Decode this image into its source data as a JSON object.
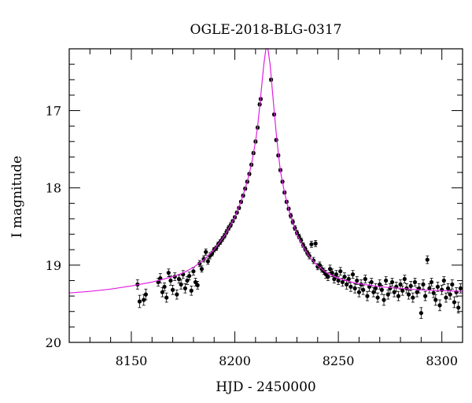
{
  "chart_data": {
    "type": "scatter",
    "title": "OGLE-2018-BLG-0317",
    "xlabel": "HJD - 2450000",
    "ylabel": "I magnitude",
    "xlim": [
      8120,
      8310
    ],
    "ylim": [
      20.0,
      16.2
    ],
    "y_inverted": true,
    "x_ticks": [
      8150,
      8200,
      8250,
      8300
    ],
    "y_ticks": [
      17,
      18,
      19,
      20
    ],
    "colors": {
      "data": "#000000",
      "model": "#e020e0"
    },
    "model": {
      "name": "",
      "x": [
        8120,
        8130,
        8140,
        8150,
        8160,
        8170,
        8175,
        8180,
        8185,
        8190,
        8195,
        8200,
        8203,
        8206,
        8208,
        8210,
        8211,
        8212,
        8213,
        8214,
        8215,
        8216,
        8217,
        8218,
        8219,
        8220,
        8221,
        8222,
        8224,
        8226,
        8228,
        8230,
        8233,
        8236,
        8240,
        8245,
        8250,
        8255,
        8260,
        8270,
        8280,
        8290,
        8300,
        8310
      ],
      "y": [
        19.36,
        19.34,
        19.31,
        19.27,
        19.22,
        19.15,
        19.1,
        19.03,
        18.93,
        18.8,
        18.62,
        18.38,
        18.18,
        17.92,
        17.7,
        17.4,
        17.2,
        16.95,
        16.68,
        16.4,
        16.15,
        16.15,
        16.4,
        16.7,
        17.0,
        17.3,
        17.55,
        17.78,
        18.06,
        18.28,
        18.45,
        18.6,
        18.76,
        18.89,
        19.01,
        19.11,
        19.17,
        19.21,
        19.24,
        19.28,
        19.3,
        19.32,
        19.33,
        19.34
      ]
    },
    "points": [
      {
        "x": 8153,
        "y": 19.25,
        "e": 0.06
      },
      {
        "x": 8154,
        "y": 19.47,
        "e": 0.08
      },
      {
        "x": 8156,
        "y": 19.45,
        "e": 0.07
      },
      {
        "x": 8157,
        "y": 19.38,
        "e": 0.07
      },
      {
        "x": 8163,
        "y": 19.22,
        "e": 0.05
      },
      {
        "x": 8164,
        "y": 19.17,
        "e": 0.06
      },
      {
        "x": 8165,
        "y": 19.35,
        "e": 0.06
      },
      {
        "x": 8166,
        "y": 19.28,
        "e": 0.05
      },
      {
        "x": 8167,
        "y": 19.42,
        "e": 0.06
      },
      {
        "x": 8168,
        "y": 19.1,
        "e": 0.05
      },
      {
        "x": 8169,
        "y": 19.2,
        "e": 0.06
      },
      {
        "x": 8170,
        "y": 19.32,
        "e": 0.06
      },
      {
        "x": 8171,
        "y": 19.15,
        "e": 0.05
      },
      {
        "x": 8172,
        "y": 19.38,
        "e": 0.06
      },
      {
        "x": 8173,
        "y": 19.18,
        "e": 0.05
      },
      {
        "x": 8174,
        "y": 19.25,
        "e": 0.06
      },
      {
        "x": 8175,
        "y": 19.12,
        "e": 0.05
      },
      {
        "x": 8176,
        "y": 19.3,
        "e": 0.06
      },
      {
        "x": 8177,
        "y": 19.2,
        "e": 0.05
      },
      {
        "x": 8178,
        "y": 19.14,
        "e": 0.05
      },
      {
        "x": 8179,
        "y": 19.33,
        "e": 0.06
      },
      {
        "x": 8180,
        "y": 19.08,
        "e": 0.05
      },
      {
        "x": 8181,
        "y": 19.22,
        "e": 0.05
      },
      {
        "x": 8182,
        "y": 19.26,
        "e": 0.05
      },
      {
        "x": 8183,
        "y": 18.98,
        "e": 0.04
      },
      {
        "x": 8184,
        "y": 19.05,
        "e": 0.04
      },
      {
        "x": 8185,
        "y": 18.92,
        "e": 0.04
      },
      {
        "x": 8186,
        "y": 18.83,
        "e": 0.04
      },
      {
        "x": 8187,
        "y": 18.95,
        "e": 0.04
      },
      {
        "x": 8188,
        "y": 18.88,
        "e": 0.04
      },
      {
        "x": 8189,
        "y": 18.85,
        "e": 0.03
      },
      {
        "x": 8190,
        "y": 18.8,
        "e": 0.03
      },
      {
        "x": 8191,
        "y": 18.78,
        "e": 0.03
      },
      {
        "x": 8192,
        "y": 18.73,
        "e": 0.03
      },
      {
        "x": 8193,
        "y": 18.7,
        "e": 0.03
      },
      {
        "x": 8194,
        "y": 18.66,
        "e": 0.03
      },
      {
        "x": 8195,
        "y": 18.62,
        "e": 0.03
      },
      {
        "x": 8196,
        "y": 18.57,
        "e": 0.03
      },
      {
        "x": 8197,
        "y": 18.52,
        "e": 0.03
      },
      {
        "x": 8198,
        "y": 18.48,
        "e": 0.03
      },
      {
        "x": 8199,
        "y": 18.43,
        "e": 0.02
      },
      {
        "x": 8200,
        "y": 18.38,
        "e": 0.02
      },
      {
        "x": 8201,
        "y": 18.32,
        "e": 0.02
      },
      {
        "x": 8202,
        "y": 18.26,
        "e": 0.02
      },
      {
        "x": 8203,
        "y": 18.18,
        "e": 0.02
      },
      {
        "x": 8204,
        "y": 18.1,
        "e": 0.02
      },
      {
        "x": 8205,
        "y": 18.01,
        "e": 0.02
      },
      {
        "x": 8206,
        "y": 17.92,
        "e": 0.02
      },
      {
        "x": 8207,
        "y": 17.82,
        "e": 0.02
      },
      {
        "x": 8208,
        "y": 17.7,
        "e": 0.02
      },
      {
        "x": 8209,
        "y": 17.55,
        "e": 0.02
      },
      {
        "x": 8210,
        "y": 17.4,
        "e": 0.02
      },
      {
        "x": 8211,
        "y": 17.22,
        "e": 0.02
      },
      {
        "x": 8212,
        "y": 16.92,
        "e": 0.02
      },
      {
        "x": 8212.5,
        "y": 16.85,
        "e": 0.02
      },
      {
        "x": 8217.5,
        "y": 16.6,
        "e": 0.02
      },
      {
        "x": 8219,
        "y": 17.05,
        "e": 0.02
      },
      {
        "x": 8220,
        "y": 17.38,
        "e": 0.02
      },
      {
        "x": 8221,
        "y": 17.58,
        "e": 0.02
      },
      {
        "x": 8222,
        "y": 17.77,
        "e": 0.02
      },
      {
        "x": 8223,
        "y": 17.92,
        "e": 0.02
      },
      {
        "x": 8224,
        "y": 18.06,
        "e": 0.02
      },
      {
        "x": 8225,
        "y": 18.18,
        "e": 0.02
      },
      {
        "x": 8226,
        "y": 18.27,
        "e": 0.02
      },
      {
        "x": 8227,
        "y": 18.36,
        "e": 0.03
      },
      {
        "x": 8228,
        "y": 18.44,
        "e": 0.03
      },
      {
        "x": 8229,
        "y": 18.52,
        "e": 0.03
      },
      {
        "x": 8230,
        "y": 18.58,
        "e": 0.03
      },
      {
        "x": 8231,
        "y": 18.63,
        "e": 0.03
      },
      {
        "x": 8232,
        "y": 18.68,
        "e": 0.03
      },
      {
        "x": 8233,
        "y": 18.74,
        "e": 0.03
      },
      {
        "x": 8234,
        "y": 18.79,
        "e": 0.03
      },
      {
        "x": 8235,
        "y": 18.84,
        "e": 0.03
      },
      {
        "x": 8236,
        "y": 18.88,
        "e": 0.04
      },
      {
        "x": 8237,
        "y": 18.73,
        "e": 0.04
      },
      {
        "x": 8238,
        "y": 18.94,
        "e": 0.04
      },
      {
        "x": 8239,
        "y": 18.72,
        "e": 0.04
      },
      {
        "x": 8240,
        "y": 19.02,
        "e": 0.04
      },
      {
        "x": 8241,
        "y": 19.0,
        "e": 0.04
      },
      {
        "x": 8242,
        "y": 19.05,
        "e": 0.04
      },
      {
        "x": 8243,
        "y": 19.08,
        "e": 0.04
      },
      {
        "x": 8244,
        "y": 19.12,
        "e": 0.05
      },
      {
        "x": 8245,
        "y": 19.15,
        "e": 0.05
      },
      {
        "x": 8246,
        "y": 19.05,
        "e": 0.05
      },
      {
        "x": 8247,
        "y": 19.1,
        "e": 0.05
      },
      {
        "x": 8248,
        "y": 19.18,
        "e": 0.05
      },
      {
        "x": 8249,
        "y": 19.12,
        "e": 0.05
      },
      {
        "x": 8250,
        "y": 19.2,
        "e": 0.05
      },
      {
        "x": 8251,
        "y": 19.08,
        "e": 0.05
      },
      {
        "x": 8252,
        "y": 19.22,
        "e": 0.05
      },
      {
        "x": 8253,
        "y": 19.15,
        "e": 0.05
      },
      {
        "x": 8254,
        "y": 19.25,
        "e": 0.06
      },
      {
        "x": 8255,
        "y": 19.18,
        "e": 0.05
      },
      {
        "x": 8256,
        "y": 19.28,
        "e": 0.06
      },
      {
        "x": 8257,
        "y": 19.12,
        "e": 0.05
      },
      {
        "x": 8258,
        "y": 19.3,
        "e": 0.06
      },
      {
        "x": 8259,
        "y": 19.2,
        "e": 0.05
      },
      {
        "x": 8260,
        "y": 19.35,
        "e": 0.06
      },
      {
        "x": 8261,
        "y": 19.25,
        "e": 0.06
      },
      {
        "x": 8262,
        "y": 19.32,
        "e": 0.06
      },
      {
        "x": 8263,
        "y": 19.18,
        "e": 0.05
      },
      {
        "x": 8264,
        "y": 19.4,
        "e": 0.06
      },
      {
        "x": 8265,
        "y": 19.28,
        "e": 0.06
      },
      {
        "x": 8266,
        "y": 19.22,
        "e": 0.05
      },
      {
        "x": 8267,
        "y": 19.35,
        "e": 0.06
      },
      {
        "x": 8268,
        "y": 19.3,
        "e": 0.06
      },
      {
        "x": 8269,
        "y": 19.42,
        "e": 0.06
      },
      {
        "x": 8270,
        "y": 19.25,
        "e": 0.06
      },
      {
        "x": 8271,
        "y": 19.32,
        "e": 0.06
      },
      {
        "x": 8272,
        "y": 19.45,
        "e": 0.07
      },
      {
        "x": 8273,
        "y": 19.2,
        "e": 0.05
      },
      {
        "x": 8274,
        "y": 19.38,
        "e": 0.06
      },
      {
        "x": 8275,
        "y": 19.3,
        "e": 0.06
      },
      {
        "x": 8276,
        "y": 19.22,
        "e": 0.05
      },
      {
        "x": 8277,
        "y": 19.35,
        "e": 0.06
      },
      {
        "x": 8278,
        "y": 19.28,
        "e": 0.06
      },
      {
        "x": 8279,
        "y": 19.4,
        "e": 0.06
      },
      {
        "x": 8280,
        "y": 19.25,
        "e": 0.06
      },
      {
        "x": 8281,
        "y": 19.33,
        "e": 0.06
      },
      {
        "x": 8282,
        "y": 19.18,
        "e": 0.05
      },
      {
        "x": 8283,
        "y": 19.3,
        "e": 0.06
      },
      {
        "x": 8284,
        "y": 19.38,
        "e": 0.06
      },
      {
        "x": 8285,
        "y": 19.27,
        "e": 0.06
      },
      {
        "x": 8286,
        "y": 19.42,
        "e": 0.06
      },
      {
        "x": 8287,
        "y": 19.22,
        "e": 0.05
      },
      {
        "x": 8288,
        "y": 19.35,
        "e": 0.06
      },
      {
        "x": 8289,
        "y": 19.3,
        "e": 0.06
      },
      {
        "x": 8290,
        "y": 19.62,
        "e": 0.07
      },
      {
        "x": 8291,
        "y": 19.25,
        "e": 0.06
      },
      {
        "x": 8292,
        "y": 19.4,
        "e": 0.06
      },
      {
        "x": 8293,
        "y": 18.93,
        "e": 0.05
      },
      {
        "x": 8294,
        "y": 19.3,
        "e": 0.06
      },
      {
        "x": 8295,
        "y": 19.22,
        "e": 0.05
      },
      {
        "x": 8296,
        "y": 19.36,
        "e": 0.06
      },
      {
        "x": 8297,
        "y": 19.45,
        "e": 0.07
      },
      {
        "x": 8298,
        "y": 19.28,
        "e": 0.06
      },
      {
        "x": 8299,
        "y": 19.52,
        "e": 0.07
      },
      {
        "x": 8300,
        "y": 19.32,
        "e": 0.06
      },
      {
        "x": 8301,
        "y": 19.2,
        "e": 0.05
      },
      {
        "x": 8302,
        "y": 19.42,
        "e": 0.06
      },
      {
        "x": 8303,
        "y": 19.3,
        "e": 0.06
      },
      {
        "x": 8304,
        "y": 19.38,
        "e": 0.06
      },
      {
        "x": 8305,
        "y": 19.25,
        "e": 0.06
      },
      {
        "x": 8306,
        "y": 19.48,
        "e": 0.07
      },
      {
        "x": 8307,
        "y": 19.35,
        "e": 0.06
      },
      {
        "x": 8308,
        "y": 19.55,
        "e": 0.07
      },
      {
        "x": 8309,
        "y": 19.3,
        "e": 0.06
      }
    ]
  }
}
